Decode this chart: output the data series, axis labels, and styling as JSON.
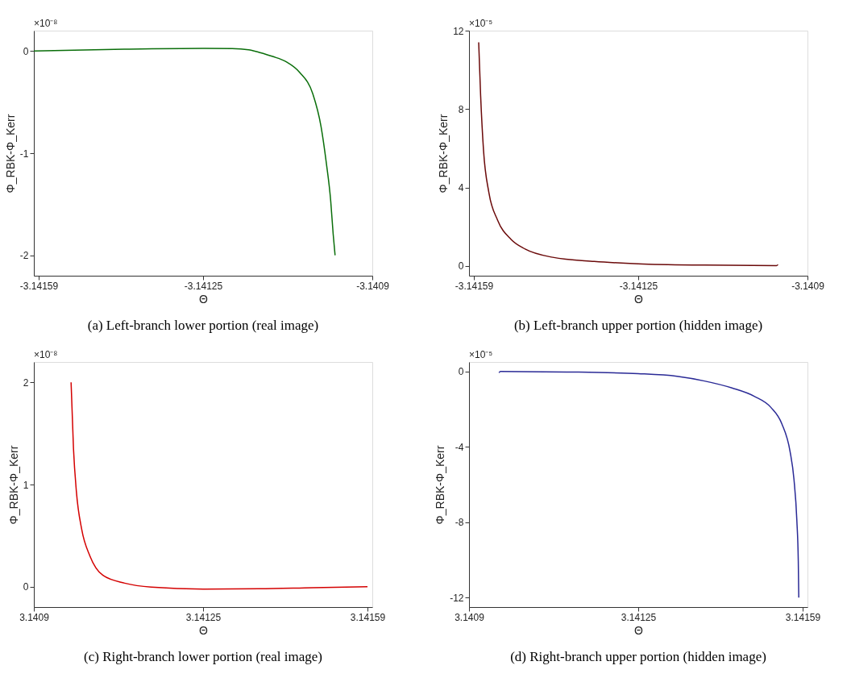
{
  "chart_data": [
    {
      "type": "line",
      "xlabel": "Θ",
      "ylabel": "Φ_RBK-Φ_Kerr",
      "annotations": [
        "×10⁻⁸",
        "(a) Left-branch lower portion (real image)"
      ],
      "xlim": [
        -3.1416,
        -3.1409
      ],
      "xticks": [
        -3.14159,
        -3.14125,
        -3.1409
      ],
      "ylim": [
        -2.2,
        0.2
      ],
      "yticks": [
        -2,
        -1,
        0
      ],
      "grid": false,
      "series": [
        {
          "color": "#0a6e0a",
          "x": [
            -3.1416,
            -3.141413,
            -3.14125,
            -3.14119,
            -3.141156,
            -3.141134,
            -3.141106,
            -3.141078,
            -3.14105,
            -3.141023,
            -3.141006,
            -3.140995,
            -3.140986,
            -3.140981,
            -3.140977
          ],
          "values": [
            0,
            0.018,
            0.026,
            0.024,
            0.013,
            -0.013,
            -0.053,
            -0.105,
            -0.21,
            -0.42,
            -0.74,
            -1.1,
            -1.47,
            -1.79,
            -2.0
          ]
        }
      ]
    },
    {
      "type": "line",
      "xlabel": "Θ",
      "ylabel": "Φ_RBK-Φ_Kerr",
      "annotations": [
        "×10⁻⁵",
        "(b) Left-branch upper portion (hidden image)"
      ],
      "xlim": [
        -3.1416,
        -3.1409
      ],
      "xticks": [
        -3.14159,
        -3.14125,
        -3.1409
      ],
      "ylim": [
        -0.5,
        12
      ],
      "yticks": [
        0,
        4,
        8,
        12
      ],
      "grid": false,
      "series": [
        {
          "color": "#6b0a0a",
          "x": [
            -3.14158,
            -3.141576,
            -3.14157,
            -3.141559,
            -3.141541,
            -3.141513,
            -3.141484,
            -3.141427,
            -3.141341,
            -3.14125,
            -3.141113,
            -3.140964,
            -3.140961
          ],
          "values": [
            11.4,
            8.7,
            5.9,
            3.75,
            2.34,
            1.35,
            0.86,
            0.44,
            0.23,
            0.11,
            0.04,
            0.01,
            0.07
          ]
        }
      ]
    },
    {
      "type": "line",
      "xlabel": "Θ",
      "ylabel": "Φ_RBK-Φ_Kerr",
      "annotations": [
        "×10⁻⁸",
        "(c) Right-branch lower portion (real image)"
      ],
      "xlim": [
        3.1409,
        3.1416
      ],
      "xticks": [
        3.1409,
        3.14125,
        3.14159
      ],
      "ylim": [
        -0.2,
        2.2
      ],
      "yticks": [
        0,
        1,
        2
      ],
      "grid": false,
      "series": [
        {
          "color": "#d40000",
          "x": [
            3.140977,
            3.140982,
            3.140988,
            3.140999,
            3.141016,
            3.141043,
            3.141088,
            3.141143,
            3.14125,
            3.141366,
            3.141477,
            3.14159
          ],
          "values": [
            2.0,
            1.35,
            0.93,
            0.56,
            0.3,
            0.11,
            0.034,
            -0.005,
            -0.024,
            -0.021,
            -0.01,
            0
          ]
        }
      ]
    },
    {
      "type": "line",
      "xlabel": "Θ",
      "ylabel": "Φ_RBK-Φ_Kerr",
      "annotations": [
        "×10⁻⁵",
        "(d) Right-branch upper portion (hidden image)"
      ],
      "xlim": [
        3.1409,
        3.1416
      ],
      "xticks": [
        3.1409,
        3.14125,
        3.14159
      ],
      "ylim": [
        -12.5,
        0.5
      ],
      "yticks": [
        -12,
        -8,
        -4,
        0
      ],
      "grid": false,
      "series": [
        {
          "color": "#2a2a96",
          "x": [
            3.140962,
            3.140965,
            3.141102,
            3.14125,
            3.14133,
            3.141387,
            3.141444,
            3.14149,
            3.141524,
            3.141547,
            3.141564,
            3.141572,
            3.141578,
            3.141581,
            3.141582
          ],
          "values": [
            -0.07,
            0,
            -0.03,
            -0.12,
            -0.26,
            -0.51,
            -0.88,
            -1.32,
            -1.9,
            -2.78,
            -4.25,
            -5.71,
            -7.9,
            -10.1,
            -12.0
          ]
        }
      ]
    }
  ]
}
